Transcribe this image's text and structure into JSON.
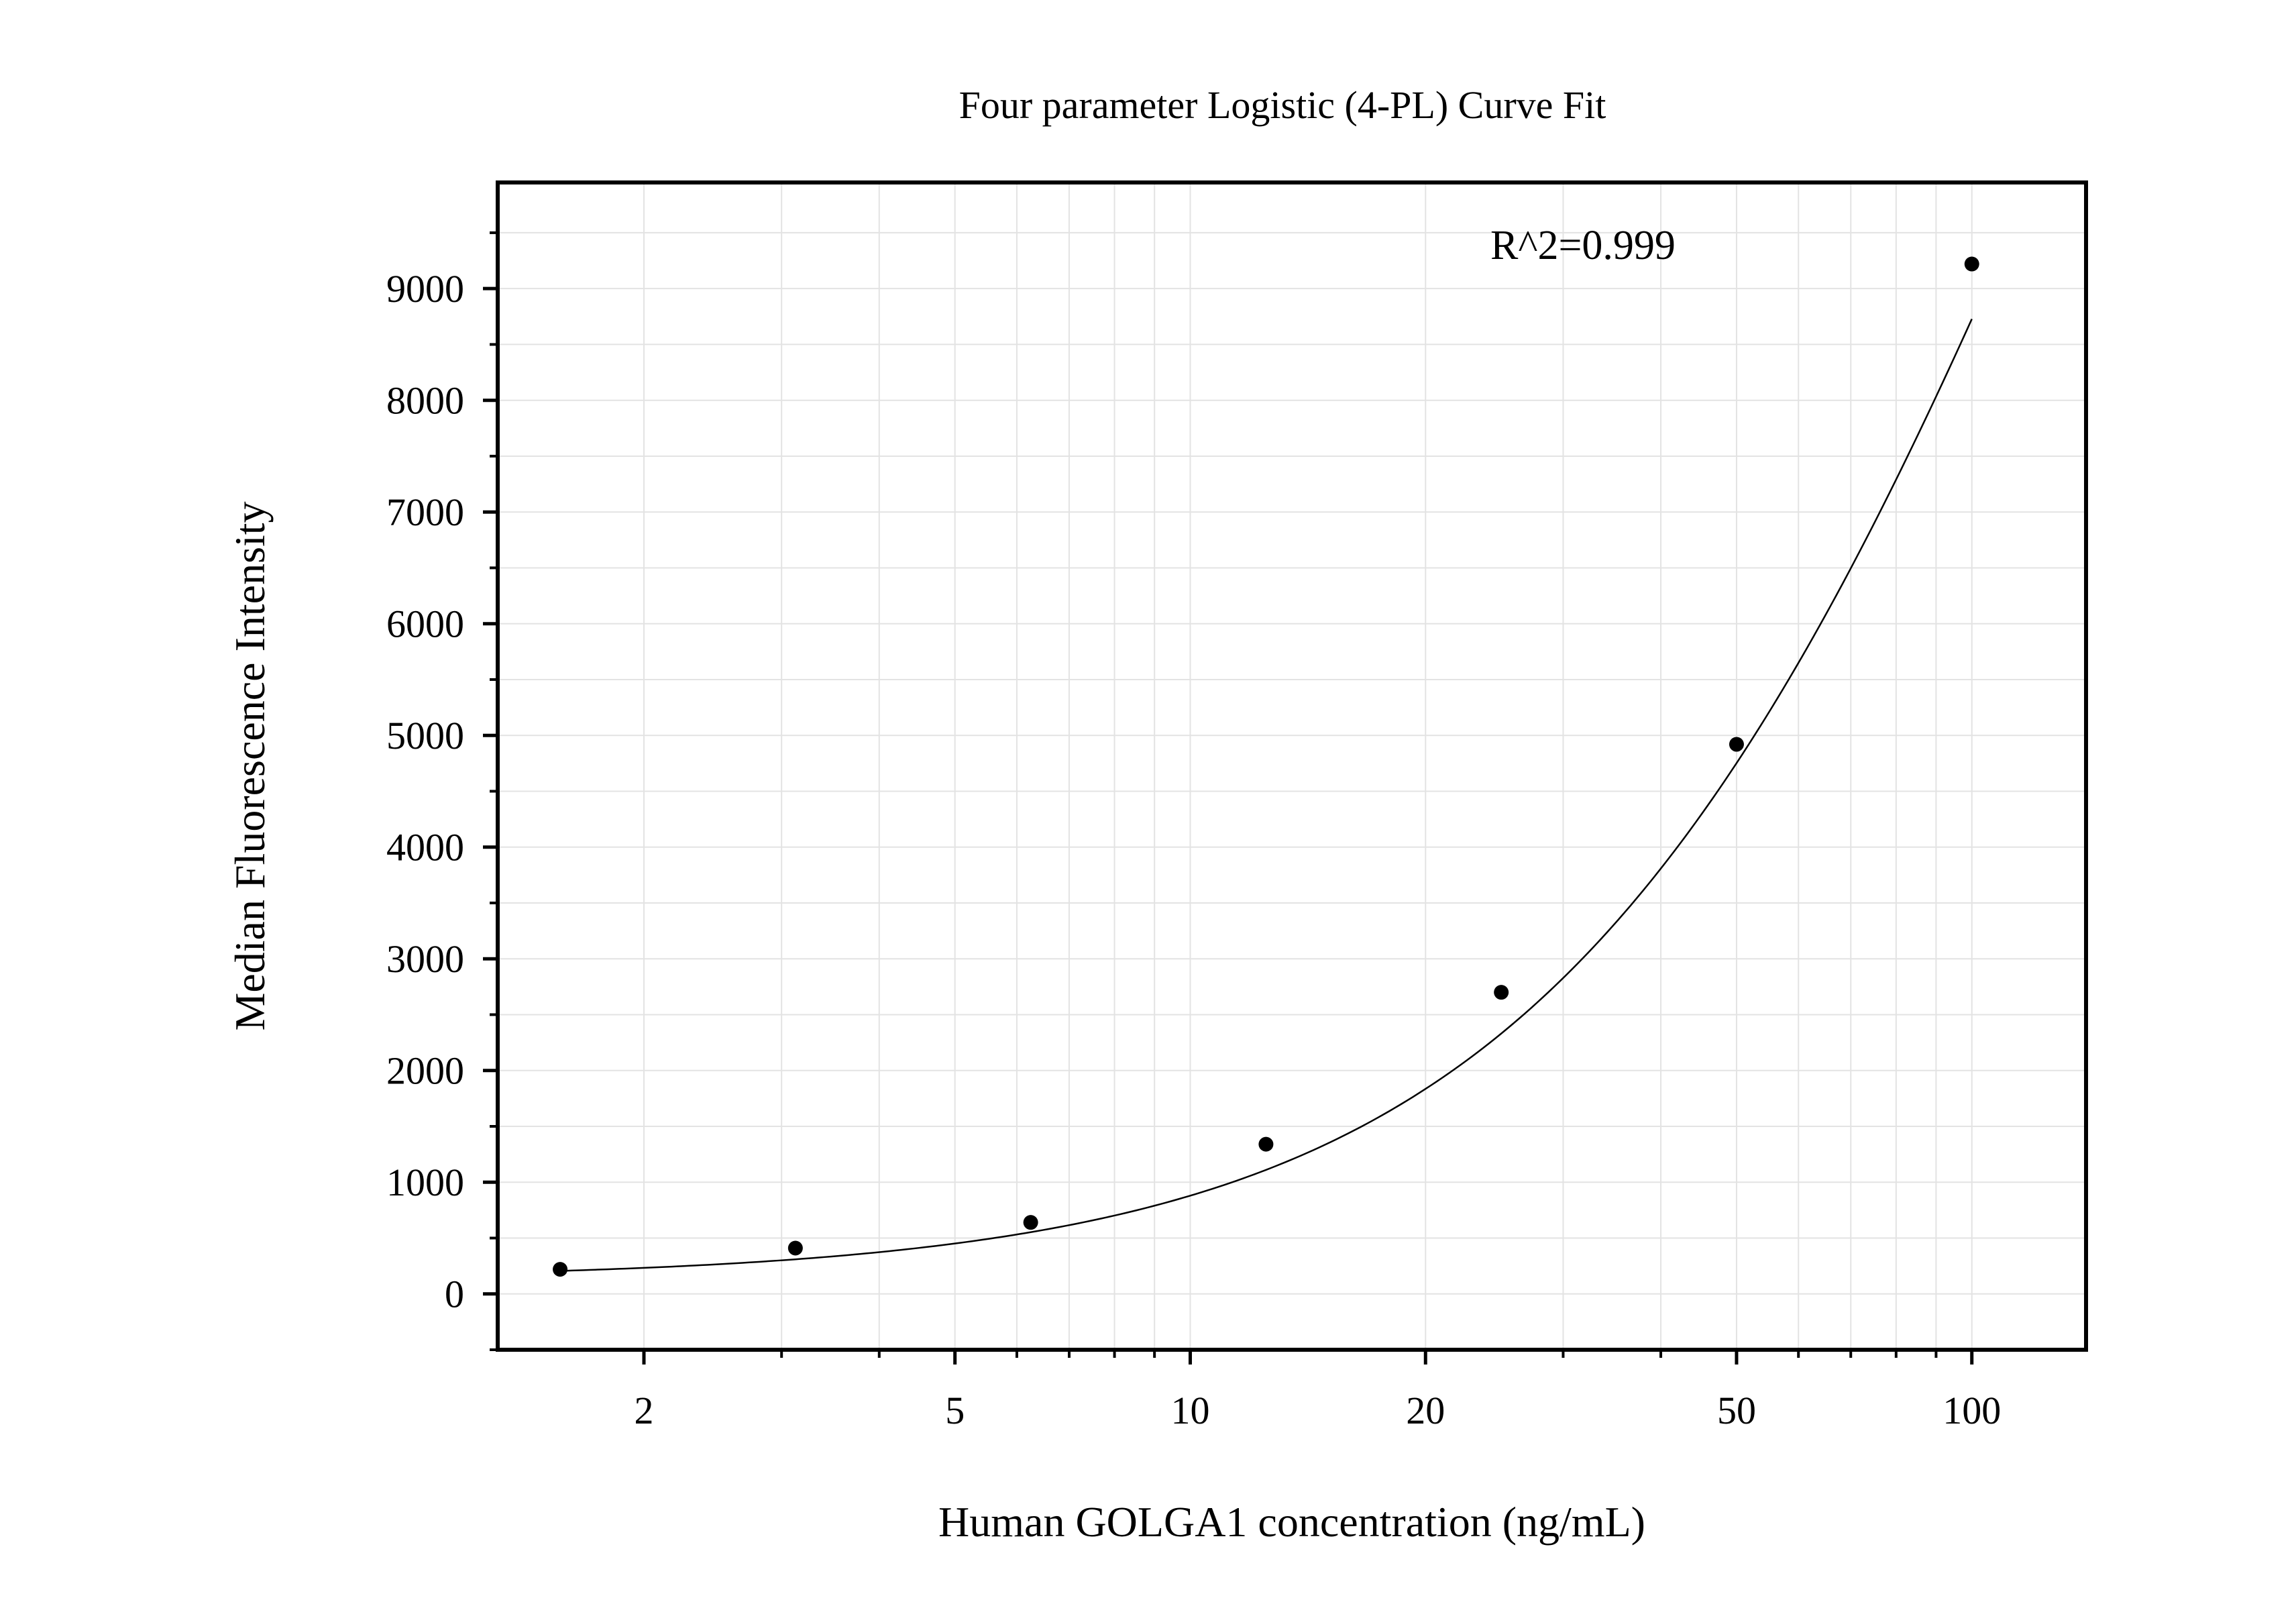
{
  "chart_data": {
    "type": "scatter",
    "title": "Four parameter Logistic (4-PL) Curve Fit",
    "xlabel": "Human GOLGA1 concentration (ng/mL)",
    "ylabel": "Median Fluorescence Intensity",
    "x_scale": "log",
    "xlim": [
      1.3,
      140
    ],
    "ylim": [
      -500,
      9950
    ],
    "x_ticks": [
      2,
      5,
      10,
      20,
      50,
      100
    ],
    "x_tick_labels": [
      "2",
      "5",
      "10",
      "20",
      "50",
      "100"
    ],
    "y_ticks": [
      0,
      1000,
      2000,
      3000,
      4000,
      5000,
      6000,
      7000,
      8000,
      9000
    ],
    "y_tick_labels": [
      "0",
      "1000",
      "2000",
      "3000",
      "4000",
      "5000",
      "6000",
      "7000",
      "8000",
      "9000"
    ],
    "grid": true,
    "annotation": "R^2=0.999",
    "series": [
      {
        "x": [
          1.5625,
          3.125,
          6.25,
          12.5,
          25,
          50,
          100
        ],
        "y": [
          220,
          410,
          640,
          1340,
          2700,
          4920,
          9220
        ]
      }
    ],
    "fit_curve": {
      "model": "4PL",
      "A": 130,
      "B": 1.25,
      "C": 150,
      "D": 23000
    },
    "colors": {
      "points": "#000000",
      "curve": "#000000",
      "grid": "#e3e3e3",
      "frame": "#000000"
    }
  }
}
